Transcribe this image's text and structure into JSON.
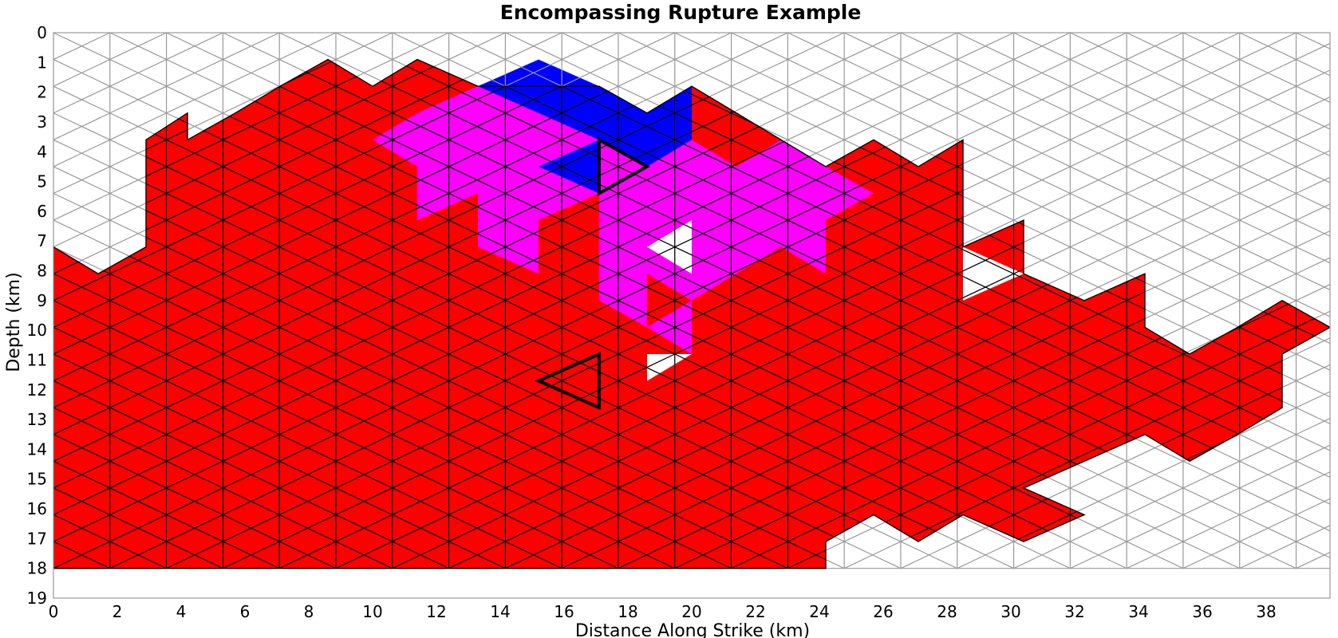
{
  "chart_data": {
    "type": "triangular-mesh",
    "title": "Encompassing Rupture Example",
    "xlabel": "Distance Along Strike (km)",
    "ylabel": "Depth (km)",
    "xlim": [
      0,
      40
    ],
    "ylim": [
      19,
      0
    ],
    "y_inverted": true,
    "mesh_depth_km": 18,
    "mesh_cols": 23,
    "x_ticks": [
      "0",
      "2",
      "4",
      "6",
      "8",
      "10",
      "12",
      "14",
      "16",
      "18",
      "20",
      "22",
      "24",
      "26",
      "28",
      "30",
      "32",
      "34",
      "36",
      "38"
    ],
    "y_ticks": [
      "0",
      "1",
      "2",
      "3",
      "4",
      "5",
      "6",
      "7",
      "8",
      "9",
      "10",
      "11",
      "12",
      "13",
      "14",
      "15",
      "16",
      "17",
      "18",
      "19"
    ],
    "colors": {
      "background": "#ffffff",
      "mesh_grid": "#999999",
      "encompassing_rupture": "#ff0000",
      "sub_rupture_1": "#ff00ff",
      "sub_rupture_2": "#0000ff",
      "outline": "#000000"
    },
    "red_region_profile": [
      {
        "x": 0,
        "top_depth": 7.2
      },
      {
        "x": 1.4,
        "top_depth": 8.1
      },
      {
        "x": 2.9,
        "top_depth": 7.2
      },
      {
        "x": 2.9,
        "top_depth": 3.6
      },
      {
        "x": 4.2,
        "top_depth": 2.7
      },
      {
        "x": 4.2,
        "top_depth": 3.6
      },
      {
        "x": 5.7,
        "top_depth": 2.7
      },
      {
        "x": 7.1,
        "top_depth": 1.8
      },
      {
        "x": 8.6,
        "top_depth": 0.9
      },
      {
        "x": 10,
        "top_depth": 1.8
      },
      {
        "x": 11.4,
        "top_depth": 0.9
      },
      {
        "x": 13.3,
        "top_depth": 1.8
      },
      {
        "x": 17.1,
        "top_depth": 1.8
      },
      {
        "x": 18.6,
        "top_depth": 2.7
      },
      {
        "x": 20,
        "top_depth": 1.8
      },
      {
        "x": 21.4,
        "top_depth": 2.7
      },
      {
        "x": 22.8,
        "top_depth": 3.6
      },
      {
        "x": 24.2,
        "top_depth": 4.5
      },
      {
        "x": 25.7,
        "top_depth": 3.6
      },
      {
        "x": 27.1,
        "top_depth": 4.5
      },
      {
        "x": 28.5,
        "top_depth": 3.6
      },
      {
        "x": 28.5,
        "top_depth": 7.2
      },
      {
        "x": 30.4,
        "top_depth": 6.3
      },
      {
        "x": 30.4,
        "top_depth": 8.1
      },
      {
        "x": 32.3,
        "top_depth": 9.0
      },
      {
        "x": 34.2,
        "top_depth": 8.1
      },
      {
        "x": 34.2,
        "top_depth": 9.9
      },
      {
        "x": 35.6,
        "top_depth": 10.8
      },
      {
        "x": 37.1,
        "top_depth": 9.9
      },
      {
        "x": 38.5,
        "top_depth": 9.0
      },
      {
        "x": 40,
        "top_depth": 9.9
      }
    ],
    "red_region_bottom_profile": [
      {
        "x": 38.5,
        "depth": 10.8
      },
      {
        "x": 38.5,
        "depth": 12.6
      },
      {
        "x": 37.1,
        "depth": 13.5
      },
      {
        "x": 35.6,
        "depth": 14.4
      },
      {
        "x": 34.2,
        "depth": 13.5
      },
      {
        "x": 32.3,
        "depth": 14.4
      },
      {
        "x": 30.4,
        "depth": 15.3
      },
      {
        "x": 32.3,
        "depth": 16.2
      },
      {
        "x": 30.4,
        "depth": 17.1
      },
      {
        "x": 28.5,
        "depth": 16.2
      },
      {
        "x": 27.1,
        "depth": 17.1
      },
      {
        "x": 25.7,
        "depth": 16.2
      },
      {
        "x": 24.2,
        "depth": 17.1
      },
      {
        "x": 24.2,
        "depth": 18
      },
      {
        "x": 0,
        "depth": 18
      }
    ],
    "red_holes": [
      [
        {
          "x": 18.6,
          "depth": 7.2
        },
        {
          "x": 20,
          "depth": 6.3
        },
        {
          "x": 20,
          "depth": 8.1
        }
      ],
      [
        {
          "x": 18.6,
          "depth": 10.8
        },
        {
          "x": 20,
          "depth": 10.8
        },
        {
          "x": 18.6,
          "depth": 11.7
        }
      ],
      [
        {
          "x": 28.5,
          "depth": 7.2
        },
        {
          "x": 30.4,
          "depth": 8.1
        },
        {
          "x": 28.5,
          "depth": 9.0
        }
      ]
    ],
    "magenta_region": [
      {
        "x": 10,
        "depth": 3.6
      },
      {
        "x": 11.4,
        "depth": 2.7
      },
      {
        "x": 13.3,
        "depth": 1.8
      },
      {
        "x": 15.2,
        "depth": 2.7
      },
      {
        "x": 17.1,
        "depth": 3.6
      },
      {
        "x": 15.2,
        "depth": 4.5
      },
      {
        "x": 17.1,
        "depth": 5.4
      },
      {
        "x": 17.1,
        "depth": 3.6
      },
      {
        "x": 18.6,
        "depth": 4.5
      },
      {
        "x": 20,
        "depth": 3.6
      },
      {
        "x": 21.4,
        "depth": 4.5
      },
      {
        "x": 22.8,
        "depth": 3.6
      },
      {
        "x": 24.2,
        "depth": 4.5
      },
      {
        "x": 25.7,
        "depth": 5.4
      },
      {
        "x": 24.2,
        "depth": 6.3
      },
      {
        "x": 24.2,
        "depth": 8.1
      },
      {
        "x": 22.8,
        "depth": 7.2
      },
      {
        "x": 21.4,
        "depth": 8.1
      },
      {
        "x": 20,
        "depth": 9.0
      },
      {
        "x": 20,
        "depth": 10.8
      },
      {
        "x": 18.6,
        "depth": 9.9
      },
      {
        "x": 17.1,
        "depth": 9.0
      },
      {
        "x": 17.1,
        "depth": 5.4
      },
      {
        "x": 15.2,
        "depth": 6.3
      },
      {
        "x": 15.2,
        "depth": 8.1
      },
      {
        "x": 13.3,
        "depth": 7.2
      },
      {
        "x": 13.3,
        "depth": 5.4
      },
      {
        "x": 11.4,
        "depth": 6.3
      },
      {
        "x": 11.4,
        "depth": 4.5
      }
    ],
    "magenta_cutouts": [
      [
        {
          "x": 18.6,
          "depth": 7.2
        },
        {
          "x": 20,
          "depth": 6.3
        },
        {
          "x": 20,
          "depth": 8.1
        }
      ],
      [
        {
          "x": 18.6,
          "depth": 8.1
        },
        {
          "x": 20,
          "depth": 9.0
        },
        {
          "x": 18.6,
          "depth": 9.9
        }
      ]
    ],
    "blue_region": [
      {
        "x": 13.3,
        "depth": 1.8
      },
      {
        "x": 15.2,
        "depth": 0.9
      },
      {
        "x": 17.1,
        "depth": 1.8
      },
      {
        "x": 18.6,
        "depth": 2.7
      },
      {
        "x": 20,
        "depth": 1.8
      },
      {
        "x": 20,
        "depth": 3.6
      },
      {
        "x": 18.6,
        "depth": 4.5
      },
      {
        "x": 17.1,
        "depth": 3.6
      },
      {
        "x": 17.1,
        "depth": 5.4
      },
      {
        "x": 15.2,
        "depth": 4.5
      },
      {
        "x": 17.1,
        "depth": 3.6
      },
      {
        "x": 15.2,
        "depth": 2.7
      }
    ],
    "outlined_triangles": [
      [
        {
          "x": 17.1,
          "depth": 3.6
        },
        {
          "x": 18.6,
          "depth": 4.5
        },
        {
          "x": 17.1,
          "depth": 5.4
        }
      ],
      [
        {
          "x": 17.1,
          "depth": 10.8
        },
        {
          "x": 17.1,
          "depth": 12.6
        },
        {
          "x": 15.2,
          "depth": 11.7
        }
      ]
    ]
  }
}
